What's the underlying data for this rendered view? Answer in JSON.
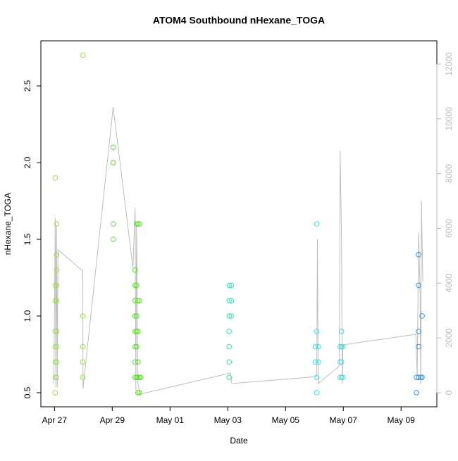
{
  "chart_data": {
    "type": "scatter",
    "title": "ATOM4 Southbound nHexane_TOGA",
    "x_label": "Date",
    "y_label": "nHexane_TOGA",
    "xlim": [
      "04-26T12:40",
      "05-10T05:45"
    ],
    "xticks": [
      {
        "value": "04-27T00:00",
        "label": "Apr 27"
      },
      {
        "value": "04-29T00:00",
        "label": "Apr 29"
      },
      {
        "value": "05-01T00:00",
        "label": "May 01"
      },
      {
        "value": "05-03T00:00",
        "label": "May 03"
      },
      {
        "value": "05-05T00:00",
        "label": "May 05"
      },
      {
        "value": "05-07T00:00",
        "label": "May 07"
      },
      {
        "value": "05-09T00:00",
        "label": "May 09"
      }
    ],
    "ylim": [
      0.408,
      2.794
    ],
    "yticks": [
      0.5,
      {
        "value": 1,
        "label": "1.0"
      },
      1.5,
      {
        "value": 2,
        "label": "2.0"
      },
      2.5
    ],
    "y2lim": [
      -514,
      12848
    ],
    "y2ticks": [
      0,
      2000,
      4000,
      6000,
      8000,
      10000,
      12000
    ],
    "series": [
      {
        "color": "#9be83a",
        "x": [
          "04-27T00:35",
          "04-27T00:35",
          "04-27T00:35",
          "04-27T00:35",
          "04-27T00:35",
          "04-27T00:35",
          "04-27T00:35",
          "04-27T00:35",
          "04-27T01:45",
          "04-27T01:45",
          "04-27T01:45",
          "04-27T01:45",
          "04-27T01:45",
          "04-27T01:45",
          "04-27T01:45",
          "04-27T01:45",
          "04-27T01:45",
          "04-27T23:30",
          "04-27T23:30",
          "04-27T23:30",
          "04-27T23:30",
          "04-27T23:30"
        ],
        "values": [
          0.5,
          0.6,
          0.7,
          0.8,
          0.9,
          1.1,
          1.2,
          1.9,
          0.6,
          0.7,
          0.8,
          0.9,
          1.1,
          1.2,
          1.3,
          1.4,
          1.6,
          0.6,
          0.7,
          0.8,
          1.0,
          2.7
        ]
      },
      {
        "color": "#5fe033",
        "x": [
          "04-29T00:45",
          "04-29T00:45",
          "04-29T00:45",
          "04-29T00:45",
          "04-29T19:00",
          "04-29T19:00",
          "04-29T19:00",
          "04-29T19:00",
          "04-29T19:00",
          "04-29T19:00",
          "04-29T19:00",
          "04-29T19:00",
          "04-29T20:10",
          "04-29T20:10",
          "04-29T20:10",
          "04-29T20:10",
          "04-29T20:10",
          "04-29T20:10",
          "04-29T21:20",
          "04-29T21:20",
          "04-29T21:20",
          "04-29T21:20",
          "04-29T21:20",
          "04-29T21:20",
          "04-29T22:30",
          "04-29T22:30",
          "04-29T22:30",
          "04-29T22:30",
          "04-29T23:30"
        ],
        "values": [
          1.5,
          1.6,
          2.0,
          2.1,
          0.6,
          0.7,
          0.8,
          0.9,
          1.0,
          1.1,
          1.2,
          1.3,
          0.6,
          0.8,
          0.9,
          1.0,
          1.2,
          1.6,
          0.5,
          0.6,
          0.7,
          0.9,
          1.1,
          1.6,
          0.5,
          0.6,
          1.1,
          1.6,
          0.6
        ]
      },
      {
        "color": "#33e8b0",
        "x": [
          "05-03T01:10",
          "05-03T01:10",
          "05-03T01:10",
          "05-03T01:10",
          "05-03T01:10",
          "05-03T01:10",
          "05-03T01:10",
          "05-03T03:00",
          "05-03T03:00",
          "05-03T03:00"
        ],
        "values": [
          0.6,
          0.7,
          0.8,
          0.9,
          1.0,
          1.1,
          1.2,
          1.0,
          1.1,
          1.2
        ]
      },
      {
        "color": "#33e8e8",
        "x": [
          "05-06T00:45",
          "05-06T00:45",
          "05-06T01:55",
          "05-06T01:55",
          "05-06T01:55",
          "05-06T01:55",
          "05-06T03:10",
          "05-06T03:10",
          "05-06T21:20",
          "05-06T21:20",
          "05-06T21:20",
          "05-06T22:30",
          "05-06T22:30",
          "05-06T22:30",
          "05-06T22:30",
          "05-06T23:40",
          "05-06T23:40"
        ],
        "values": [
          0.7,
          0.8,
          0.5,
          0.6,
          0.9,
          1.6,
          0.7,
          0.8,
          0.6,
          0.7,
          0.8,
          0.6,
          0.7,
          0.8,
          0.9,
          0.6,
          0.8
        ]
      },
      {
        "color": "#2a9aea",
        "x": [
          "05-09T12:45",
          "05-09T12:45",
          "05-09T14:35",
          "05-09T14:35",
          "05-09T14:35",
          "05-09T14:35",
          "05-09T14:35",
          "05-09T16:20",
          "05-09T17:30",
          "05-09T17:30"
        ],
        "values": [
          0.5,
          0.6,
          0.6,
          0.8,
          0.9,
          1.2,
          1.4,
          0.6,
          0.6,
          1.0
        ]
      },
      {
        "color": "#bebebe",
        "axis": "y2",
        "kind": "line",
        "x": [
          "04-26T23:25",
          "04-27T00:35",
          "04-27T01:10",
          "04-27T01:45",
          "04-27T02:20",
          "04-27T02:55",
          "04-27T23:30",
          "04-27T23:40",
          "04-29T00:45",
          "04-29T17:10",
          "04-29T19:00",
          "04-29T19:35",
          "04-29T20:10",
          "04-29T21:20",
          "04-29T23:05",
          "05-03T02:15",
          "05-03T03:25",
          "05-06T01:55",
          "05-06T02:30",
          "05-06T03:10",
          "05-06T20:45",
          "05-06T21:20",
          "05-06T22:30",
          "05-06T23:05",
          "05-06T23:40",
          "05-09T12:15",
          "05-09T13:25",
          "05-09T14:35",
          "05-09T15:45",
          "05-09T16:20",
          "05-09T16:55",
          "05-09T18:05"
        ],
        "values": [
          334,
          6374,
          206,
          6117,
          206,
          5217,
          4446,
          154,
          10434,
          4575,
          6759,
          77,
          6117,
          334,
          -51,
          720,
          334,
          591,
          5603,
          334,
          977,
          8815,
          5603,
          334,
          1748,
          2133,
          591,
          5860,
          3804,
          334,
          7016,
          4061
        ]
      }
    ]
  }
}
